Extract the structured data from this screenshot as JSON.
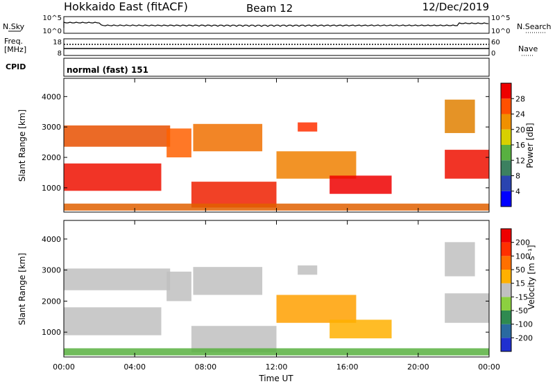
{
  "header": {
    "station": "Hokkaido East (fitACF)",
    "beam": "Beam 12",
    "date": "12/Dec/2019"
  },
  "strip": {
    "nsky_label": "N.Sky",
    "nsearch_label": "N.Search",
    "freq_label": "Freq.",
    "freq_unit": "[MHz]",
    "nave_label": "Nave",
    "cpid_label": "CPID",
    "cpid_value": "normal (fast) 151",
    "noise_left_ticks": [
      "10^5",
      "10^0"
    ],
    "noise_right_ticks": [
      "10^5",
      "10^0"
    ],
    "freq_ticks": [
      "18",
      "8"
    ],
    "nave_ticks": [
      "60",
      "0"
    ]
  },
  "chart_data": [
    {
      "type": "heatmap",
      "xlabel": "",
      "ylabel": "Slant Range [km]",
      "x_ticks": [
        "00:00",
        "04:00",
        "08:00",
        "12:00",
        "16:00",
        "20:00",
        "00:00"
      ],
      "xlim": [
        0,
        24
      ],
      "y_ticks": [
        1000,
        2000,
        3000,
        4000
      ],
      "ylim": [
        200,
        4600
      ],
      "colorbar_label": "Power [dB]",
      "colorbar_ticks": [
        4,
        8,
        12,
        16,
        20,
        24,
        28
      ],
      "colorbar_colors": [
        "#0000ff",
        "#2a44b0",
        "#3c8060",
        "#58b040",
        "#d8d000",
        "#f09000",
        "#ff5000",
        "#ee0000"
      ],
      "regions": [
        {
          "t": [
            0.0,
            6.0
          ],
          "r": [
            2350,
            3050
          ],
          "fill": "#e85000"
        },
        {
          "t": [
            0.0,
            5.5
          ],
          "r": [
            900,
            1800
          ],
          "fill": "#ee1000"
        },
        {
          "t": [
            5.8,
            7.2
          ],
          "r": [
            2000,
            2950
          ],
          "fill": "#ff6000"
        },
        {
          "t": [
            7.3,
            11.2
          ],
          "r": [
            2200,
            3100
          ],
          "fill": "#f07000"
        },
        {
          "t": [
            13.2,
            14.3
          ],
          "r": [
            2850,
            3150
          ],
          "fill": "#ff3000"
        },
        {
          "t": [
            7.2,
            12.0
          ],
          "r": [
            350,
            1200
          ],
          "fill": "#ee2000"
        },
        {
          "t": [
            12.0,
            16.5
          ],
          "r": [
            1300,
            2200
          ],
          "fill": "#f08000"
        },
        {
          "t": [
            15.0,
            18.5
          ],
          "r": [
            800,
            1400
          ],
          "fill": "#ee0000"
        },
        {
          "t": [
            21.5,
            24.0
          ],
          "r": [
            1300,
            2250
          ],
          "fill": "#ee1000"
        },
        {
          "t": [
            21.5,
            23.2
          ],
          "r": [
            2800,
            3900
          ],
          "fill": "#e08000"
        },
        {
          "t": [
            0.0,
            24.0
          ],
          "r": [
            250,
            480
          ],
          "fill": "#e06000"
        }
      ]
    },
    {
      "type": "heatmap",
      "xlabel": "Time UT",
      "ylabel": "Slant Range [km]",
      "x_ticks": [
        "00:00",
        "04:00",
        "08:00",
        "12:00",
        "16:00",
        "20:00",
        "00:00"
      ],
      "xlim": [
        0,
        24
      ],
      "y_ticks": [
        1000,
        2000,
        3000,
        4000
      ],
      "ylim": [
        200,
        4600
      ],
      "colorbar_label": "Velocity [m s⁻¹]",
      "colorbar_ticks": [
        200,
        100,
        50,
        15,
        -15,
        -50,
        -100,
        -200
      ],
      "colorbar_colors": [
        "#2030d0",
        "#2a6aa0",
        "#2f8a50",
        "#8cd040",
        "#c0c0c0",
        "#ffb000",
        "#ff7000",
        "#ff3000",
        "#ee0000"
      ],
      "regions": [
        {
          "t": [
            0.0,
            6.0
          ],
          "r": [
            2350,
            3050
          ],
          "fill": "#c0c0c0"
        },
        {
          "t": [
            0.0,
            5.5
          ],
          "r": [
            900,
            1800
          ],
          "fill": "#c0c0c0"
        },
        {
          "t": [
            5.8,
            7.2
          ],
          "r": [
            2000,
            2950
          ],
          "fill": "#c0c0c0"
        },
        {
          "t": [
            7.3,
            11.2
          ],
          "r": [
            2200,
            3100
          ],
          "fill": "#c0c0c0"
        },
        {
          "t": [
            13.2,
            14.3
          ],
          "r": [
            2850,
            3150
          ],
          "fill": "#c0c0c0"
        },
        {
          "t": [
            7.2,
            12.0
          ],
          "r": [
            350,
            1200
          ],
          "fill": "#c0c0c0"
        },
        {
          "t": [
            12.0,
            16.5
          ],
          "r": [
            1300,
            2200
          ],
          "fill": "#ffa000"
        },
        {
          "t": [
            15.0,
            18.5
          ],
          "r": [
            800,
            1400
          ],
          "fill": "#ffb000"
        },
        {
          "t": [
            21.5,
            24.0
          ],
          "r": [
            1300,
            2250
          ],
          "fill": "#c0c0c0"
        },
        {
          "t": [
            21.5,
            23.2
          ],
          "r": [
            2800,
            3900
          ],
          "fill": "#c0c0c0"
        },
        {
          "t": [
            0.0,
            24.0
          ],
          "r": [
            250,
            480
          ],
          "fill": "#58b040"
        }
      ]
    }
  ]
}
